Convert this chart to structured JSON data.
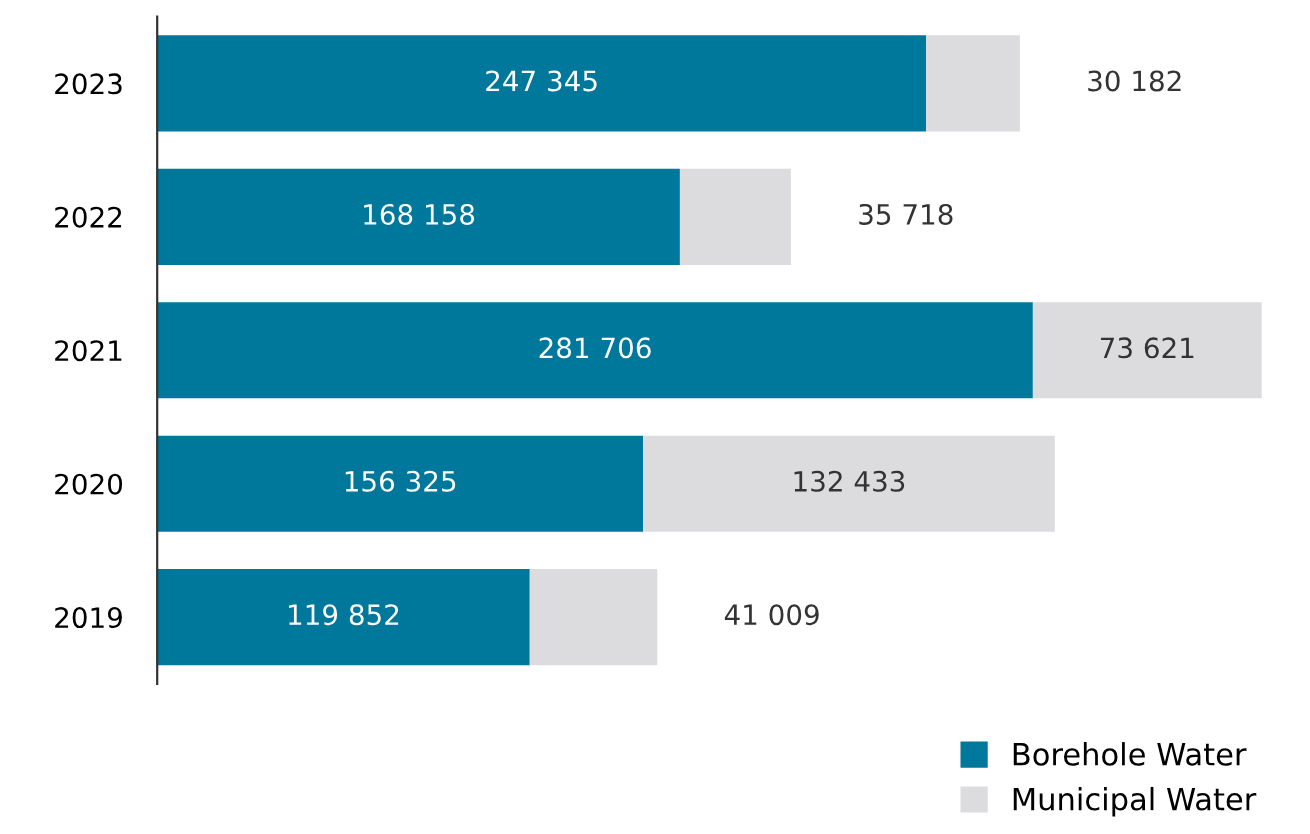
{
  "chart_data": {
    "type": "bar",
    "orientation": "horizontal",
    "stacked": true,
    "categories": [
      "2023",
      "2022",
      "2021",
      "2020",
      "2019"
    ],
    "series": [
      {
        "name": "Borehole Water",
        "color": "#00789c",
        "values": [
          247345,
          168158,
          281706,
          156325,
          119852
        ],
        "value_labels": [
          "247 345",
          "168 158",
          "281 706",
          "156 325",
          "119 852"
        ]
      },
      {
        "name": "Municipal Water",
        "color": "#dcdcde",
        "values": [
          30182,
          35718,
          73621,
          132433,
          41009
        ],
        "value_labels": [
          "30 182",
          "35 718",
          "73 621",
          "132 433",
          "41 009"
        ]
      }
    ],
    "legend": "bottom right",
    "grid": false,
    "tick_labels": "y"
  }
}
